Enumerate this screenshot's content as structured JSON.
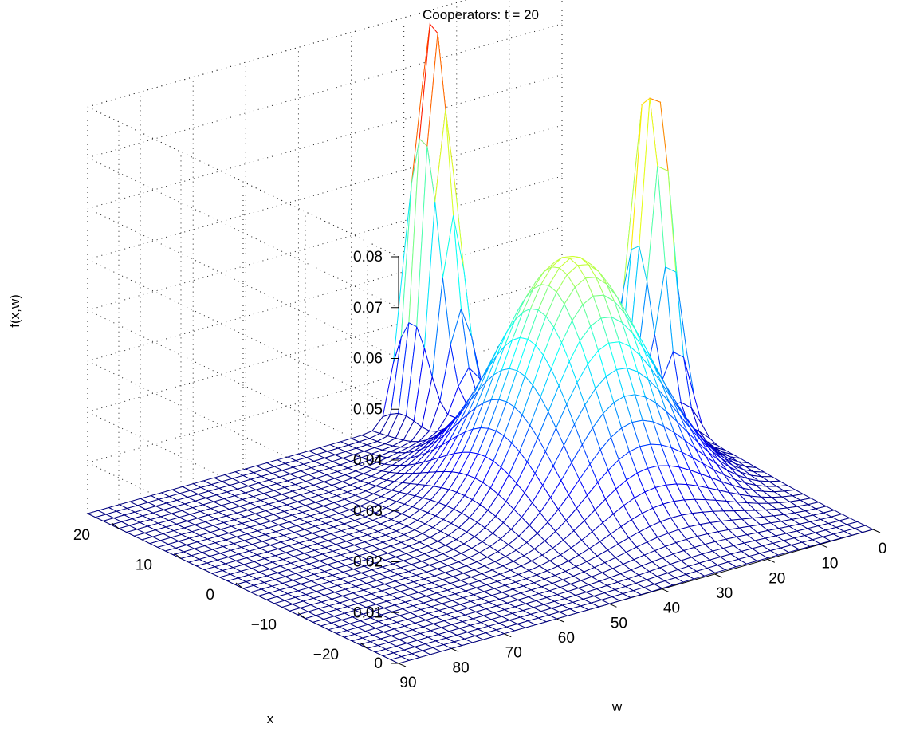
{
  "chart_data": {
    "type": "surface-mesh",
    "title": "Cooperators: t = 20",
    "xlabel": "x",
    "ylabel": "w",
    "zlabel": "f(x,w)",
    "xlim": [
      -25,
      25
    ],
    "wlim": [
      0,
      90
    ],
    "zlim": [
      0,
      0.08
    ],
    "x_ticks": [
      -20,
      -10,
      0,
      10,
      20
    ],
    "w_ticks": [
      0,
      10,
      20,
      30,
      40,
      50,
      60,
      70,
      80,
      90
    ],
    "z_ticks": [
      0,
      0.01,
      0.02,
      0.03,
      0.04,
      0.05,
      0.06,
      0.07,
      0.08
    ],
    "x_tick_labels": [
      "−20",
      "−10",
      "0",
      "10",
      "20"
    ],
    "w_tick_labels": [
      "0",
      "10",
      "20",
      "30",
      "40",
      "50",
      "60",
      "70",
      "80",
      "90"
    ],
    "z_tick_labels": [
      "0",
      "0.01",
      "0.02",
      "0.03",
      "0.04",
      "0.05",
      "0.06",
      "0.07",
      "0.08"
    ],
    "grid": true,
    "colormap": "jet",
    "surface_peaks": [
      {
        "x": 0,
        "w": 28,
        "f": 0.046
      },
      {
        "x": 22,
        "w": 28,
        "f": 0.08
      },
      {
        "x": 8,
        "w": 3,
        "f": 0.07
      }
    ],
    "mesh_resolution": {
      "x_lines": 41,
      "w_lines": 46
    }
  }
}
